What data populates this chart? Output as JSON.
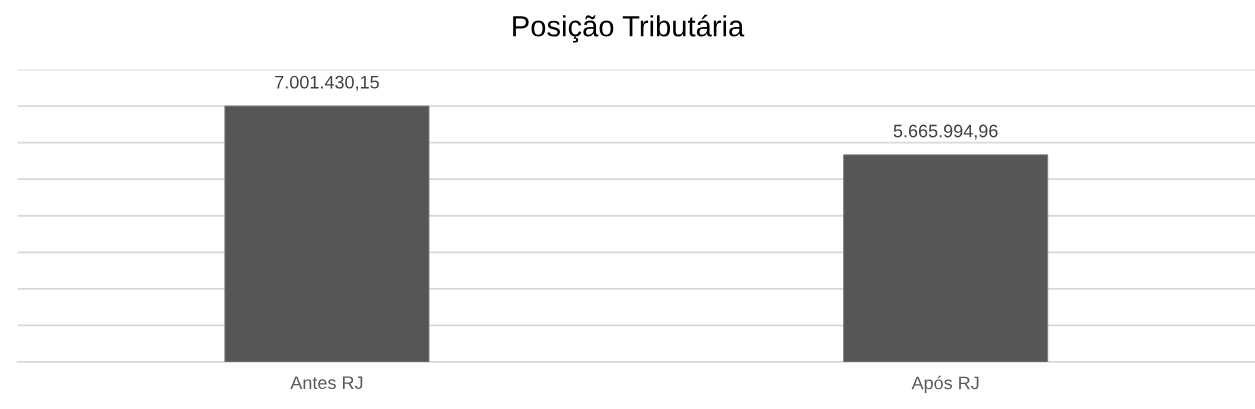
{
  "chart_data": {
    "type": "bar",
    "title": "Posição Tributária",
    "categories": [
      "Antes RJ",
      "Após RJ"
    ],
    "values": [
      7001430.15,
      5665994.96
    ],
    "value_labels": [
      "7.001.430,15",
      "5.665.994,96"
    ],
    "color": "#565656",
    "ylim": [
      0,
      8000000
    ],
    "yticks": [
      {
        "value": 0,
        "label": null
      },
      {
        "value": 1000000,
        "label": null
      },
      {
        "value": 2000000,
        "label": null
      },
      {
        "value": 3000000,
        "label": null
      },
      {
        "value": 4000000,
        "label": null
      },
      {
        "value": 5000000,
        "label": null
      },
      {
        "value": 6000000,
        "label": null
      },
      {
        "value": 7000000,
        "label": null
      },
      {
        "value": 8000000,
        "label": null
      }
    ],
    "tick_labels": "x",
    "grid": "y",
    "legend": false
  }
}
